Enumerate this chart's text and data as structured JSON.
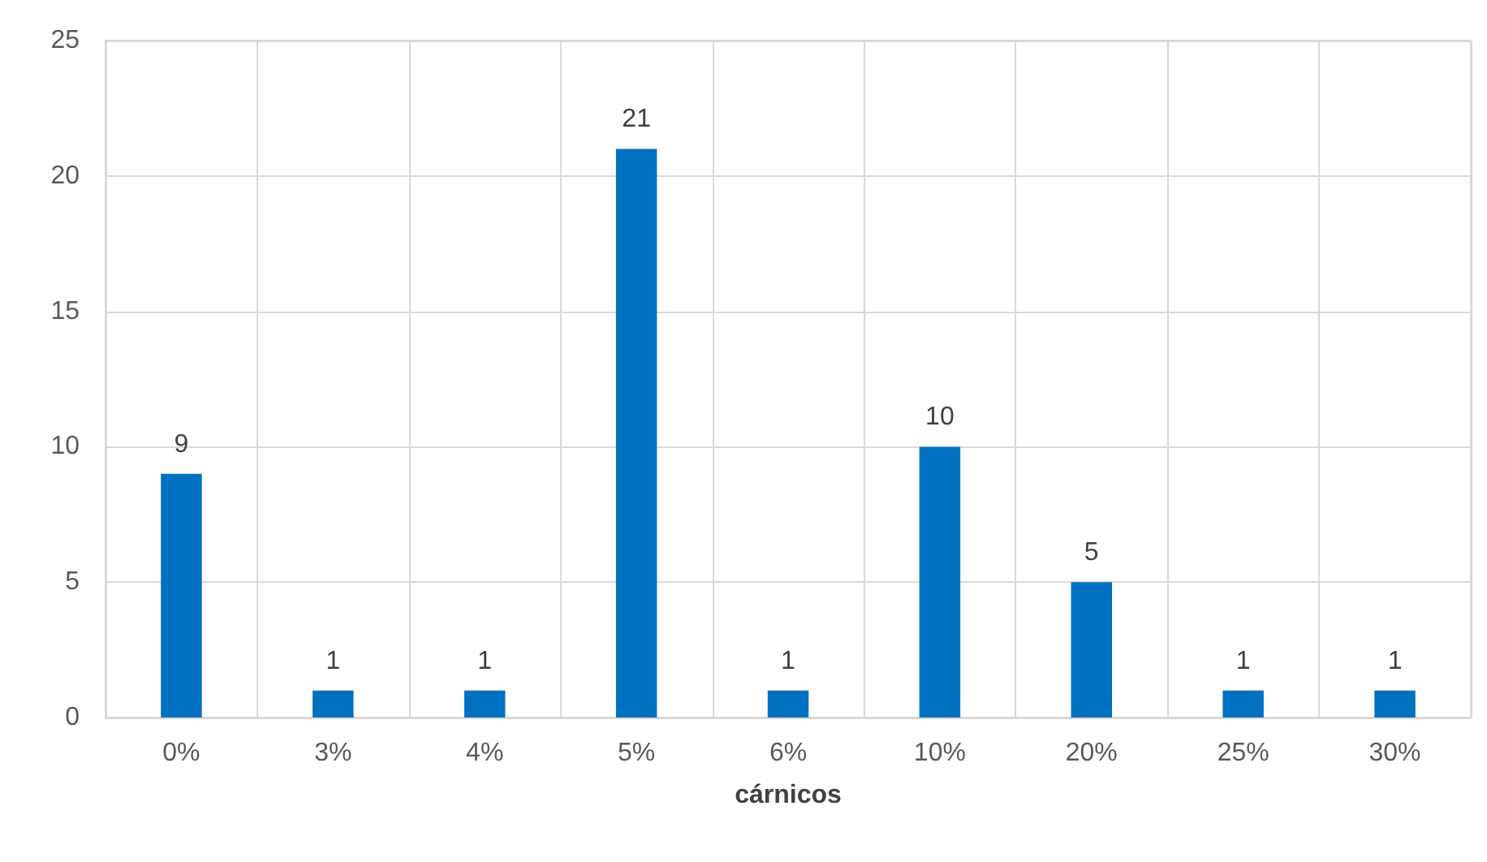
{
  "chart_data": {
    "type": "bar",
    "xlabel": "cárnicos",
    "categories": [
      "0%",
      "3%",
      "4%",
      "5%",
      "6%",
      "10%",
      "20%",
      "25%",
      "30%"
    ],
    "values": [
      9,
      1,
      1,
      21,
      1,
      10,
      5,
      1,
      1
    ],
    "color": "#0070c0",
    "ylim": [
      0,
      25
    ],
    "yticks": [
      0,
      5,
      10,
      15,
      20,
      25
    ],
    "grid": true,
    "data_labels": true
  }
}
